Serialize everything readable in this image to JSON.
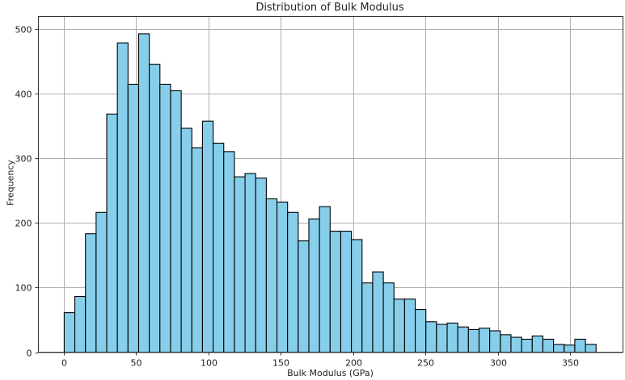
{
  "chart_data": {
    "type": "bar",
    "title": "Distribution of Bulk Modulus",
    "xlabel": "Bulk Modulus (GPa)",
    "ylabel": "Frequency",
    "xlim": [
      -17,
      387
    ],
    "ylim": [
      0,
      520
    ],
    "xticks": [
      0,
      50,
      100,
      150,
      200,
      250,
      300,
      350
    ],
    "yticks": [
      0,
      100,
      200,
      300,
      400,
      500
    ],
    "grid": true,
    "legend": null,
    "bar_color": "#87CEEB",
    "edge_color": "#000000",
    "bin_start": 0.5,
    "bin_width": 7.35,
    "values": [
      61,
      86,
      183,
      216,
      368,
      478,
      414,
      492,
      445,
      414,
      404,
      346,
      316,
      357,
      323,
      310,
      271,
      276,
      269,
      237,
      232,
      216,
      172,
      206,
      225,
      187,
      187,
      174,
      107,
      124,
      107,
      82,
      82,
      66,
      47,
      43,
      45,
      39,
      35,
      37,
      33,
      27,
      23,
      20,
      25,
      20,
      12,
      11,
      20,
      12
    ]
  }
}
